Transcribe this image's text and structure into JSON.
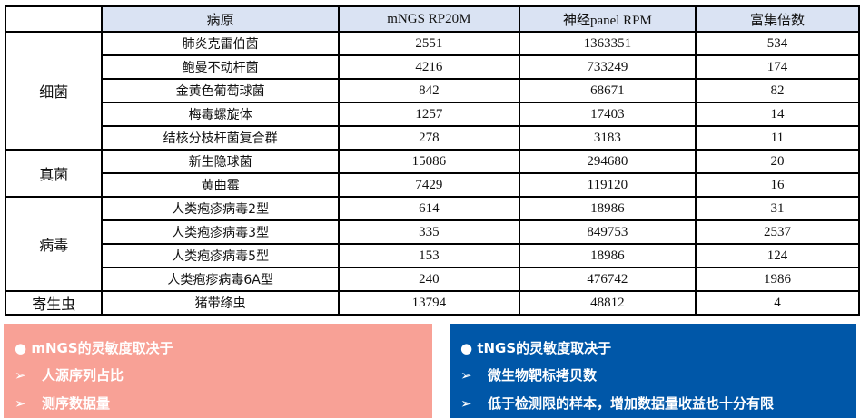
{
  "table": {
    "headers": [
      "",
      "病原",
      "mNGS  RP20M",
      "神经panel RPM",
      "富集倍数"
    ],
    "groups": [
      {
        "category": "细菌",
        "rows": [
          [
            "肺炎克雷伯菌",
            "2551",
            "1363351",
            "534"
          ],
          [
            "鲍曼不动杆菌",
            "4216",
            "733249",
            "174"
          ],
          [
            "金黄色葡萄球菌",
            "842",
            "68671",
            "82"
          ],
          [
            "梅毒螺旋体",
            "1257",
            "17403",
            "14"
          ],
          [
            "结核分枝杆菌复合群",
            "278",
            "3183",
            "11"
          ]
        ]
      },
      {
        "category": "真菌",
        "rows": [
          [
            "新生隐球菌",
            "15086",
            "294680",
            "20"
          ],
          [
            "黄曲霉",
            "7429",
            "119120",
            "16"
          ]
        ]
      },
      {
        "category": "病毒",
        "rows": [
          [
            "人类疱疹病毒2型",
            "614",
            "18986",
            "31"
          ],
          [
            "人类疱疹病毒3型",
            "335",
            "849753",
            "2537"
          ],
          [
            "人类疱疹病毒5型",
            "153",
            "18986",
            "124"
          ],
          [
            "人类疱疹病毒6A型",
            "240",
            "476742",
            "1986"
          ]
        ]
      },
      {
        "category": "寄生虫",
        "rows": [
          [
            "猪带绦虫",
            "13794",
            "48812",
            "4"
          ]
        ]
      }
    ]
  },
  "panels": [
    {
      "title": "mNGS的灵敏度取决于",
      "items": [
        "人源序列占比",
        "测序数据量"
      ],
      "color": "#f8a196"
    },
    {
      "title": "tNGS的灵敏度取决于",
      "items": [
        "微生物靶标拷贝数",
        "低于检测限的样本，增加数据量收益也十分有限"
      ],
      "color": "#0057a8"
    }
  ],
  "colors": {
    "header_bg": "#dae3f3"
  }
}
